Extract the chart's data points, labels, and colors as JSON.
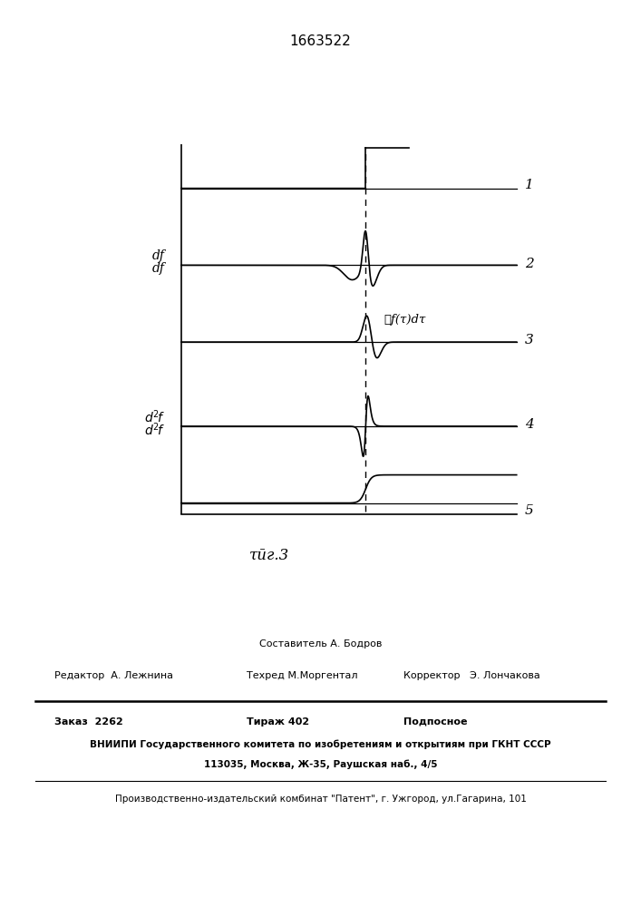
{
  "title": "1663522",
  "fig_label": "τӣг.3",
  "background_color": "#ffffff",
  "line_color": "#000000",
  "dashed_color": "#444444",
  "label1": "1",
  "label2": "2",
  "label3": "3",
  "label4": "4",
  "label5": "5",
  "integral_label": "∯f(τ)dτ",
  "footer_sostavitel": "Составитель А. Бодров",
  "footer_editor": "Редактор  А. Лежнина",
  "footer_techred": "Техред М.Моргентал",
  "footer_corrector": "Корректор   Э. Лончакова",
  "footer_order": "Заказ  2262",
  "footer_tirazh": "Тираж 402",
  "footer_podpisnoe": "Подпосное",
  "footer_vniipи": "ВНИИПИ Государственного комитета по изобретениям и открытиям при ГКНТ СССР",
  "footer_address": "113035, Москва, Ж-35, Раушская наб., 4/5",
  "footer_plant": "Производственно-издательский комбинат \"Патент\", г. Ужгород, ул.Гагарина, 101"
}
